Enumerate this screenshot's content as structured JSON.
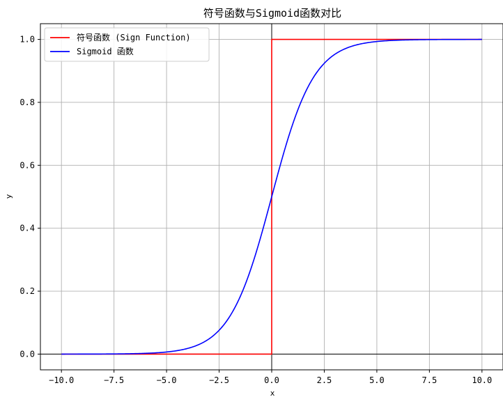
{
  "chart_data": {
    "type": "line",
    "title": "符号函数与Sigmoid函数对比",
    "xlabel": "x",
    "ylabel": "y",
    "xlim": [
      -11.0,
      11.0
    ],
    "ylim": [
      -0.05,
      1.05
    ],
    "xticks": [
      -10.0,
      -7.5,
      -5.0,
      -2.5,
      0.0,
      2.5,
      5.0,
      7.5,
      10.0
    ],
    "xtick_labels": [
      "−10.0",
      "−7.5",
      "−5.0",
      "−2.5",
      "0.0",
      "2.5",
      "5.0",
      "7.5",
      "10.0"
    ],
    "yticks": [
      0.0,
      0.2,
      0.4,
      0.6,
      0.8,
      1.0
    ],
    "ytick_labels": [
      "0.0",
      "0.2",
      "0.4",
      "0.6",
      "0.8",
      "1.0"
    ],
    "grid": true,
    "legend_position": "top-left",
    "reference_lines": {
      "x": 0,
      "y": 0,
      "color": "#000000"
    },
    "series": [
      {
        "name": "符号函数 (Sign Function)",
        "color": "#ff0000",
        "function": "step",
        "x": [
          -10,
          0,
          0,
          10
        ],
        "y": [
          0,
          0,
          1,
          1
        ]
      },
      {
        "name": "Sigmoid 函数",
        "color": "#0000ff",
        "function": "sigmoid",
        "x_range": [
          -10,
          10
        ]
      }
    ]
  }
}
